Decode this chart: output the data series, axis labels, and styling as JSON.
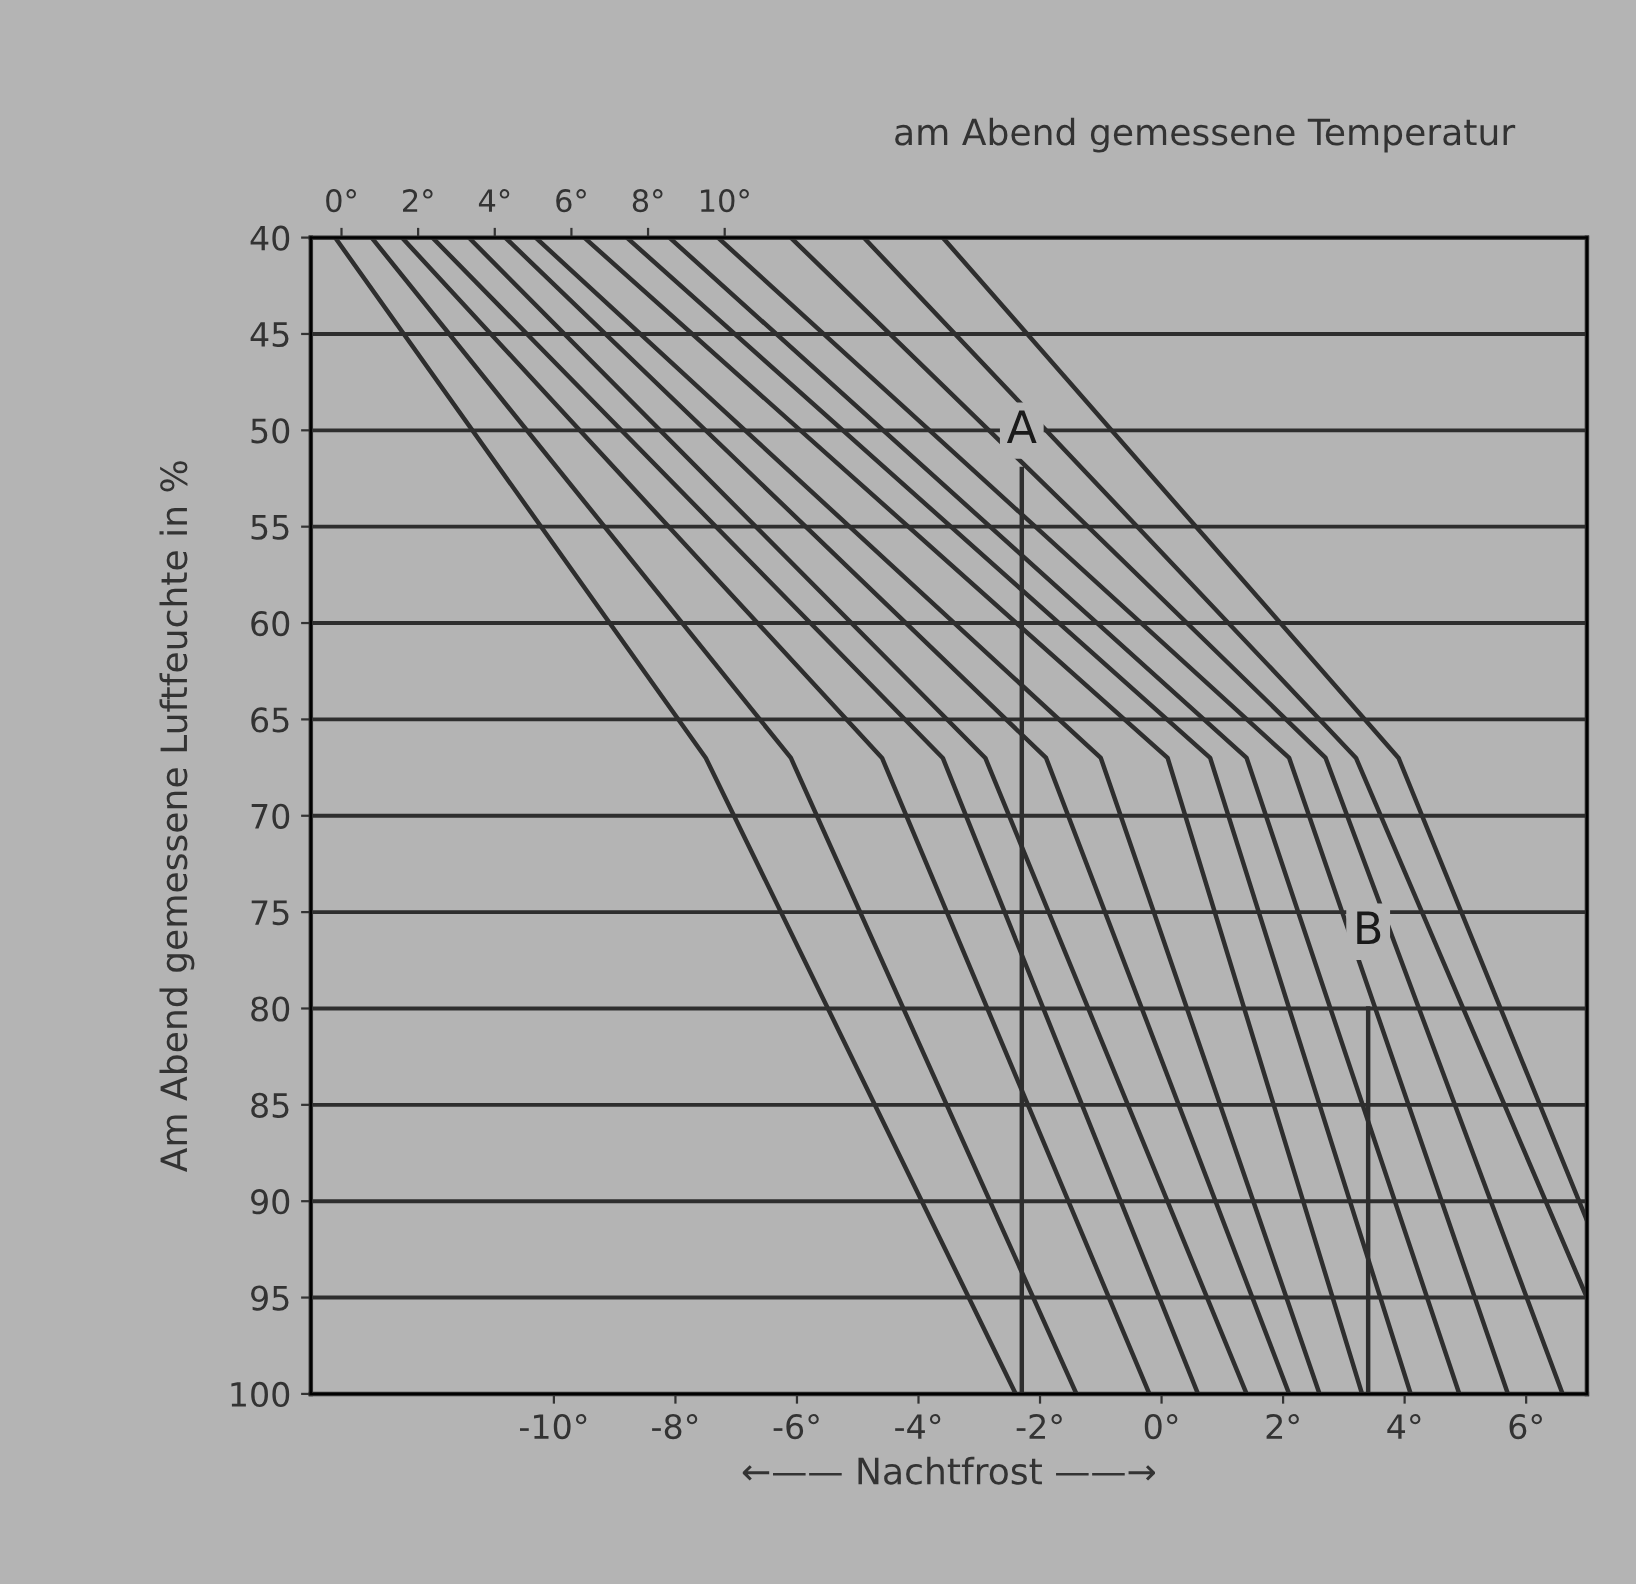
{
  "chart_data": {
    "type": "line",
    "x2label": "am Abend gemessene Temperatur",
    "ylabel": "Am Abend gemessene Luftfeuchte in %",
    "xlabel": "←—— Nachtfrost ——→",
    "xlim": [
      -14,
      7
    ],
    "ylim": [
      100,
      40
    ],
    "xticks": [
      {
        "value": -10,
        "label": "-10°"
      },
      {
        "value": -8,
        "label": "-8°"
      },
      {
        "value": -6,
        "label": "-6°"
      },
      {
        "value": -4,
        "label": "-4°"
      },
      {
        "value": -2,
        "label": "-2°"
      },
      {
        "value": 0,
        "label": "0°"
      },
      {
        "value": 2,
        "label": "2°"
      },
      {
        "value": 4,
        "label": "4°"
      },
      {
        "value": 6,
        "label": "6°"
      }
    ],
    "x2lim": [
      -0.8,
      32.5
    ],
    "x2ticks": [
      {
        "value": 0,
        "label": "0°"
      },
      {
        "value": 2,
        "label": "2°"
      },
      {
        "value": 4,
        "label": "4°"
      },
      {
        "value": 6,
        "label": "6°"
      },
      {
        "value": 8,
        "label": "8°"
      },
      {
        "value": 10,
        "label": "10°"
      }
    ],
    "yticks": [
      40,
      45,
      50,
      55,
      60,
      65,
      70,
      75,
      80,
      85,
      90,
      95,
      100
    ],
    "grid": "y",
    "line_style": "solid",
    "series": [
      {
        "color": "#2e2e2e",
        "x": [
          -13.6,
          -7.5,
          -2.4
        ],
        "values": [
          40,
          67,
          100
        ]
      },
      {
        "color": "#2e2e2e",
        "x": [
          -13.0,
          -6.1,
          -1.4
        ],
        "values": [
          40,
          67,
          100
        ]
      },
      {
        "color": "#2e2e2e",
        "x": [
          -12.5,
          -4.6,
          -0.2
        ],
        "values": [
          40,
          67,
          100
        ]
      },
      {
        "color": "#2e2e2e",
        "x": [
          -12.0,
          -3.6,
          0.6
        ],
        "values": [
          40,
          67,
          100
        ]
      },
      {
        "color": "#2e2e2e",
        "x": [
          -11.4,
          -2.9,
          1.4
        ],
        "values": [
          40,
          67,
          100
        ]
      },
      {
        "color": "#2e2e2e",
        "x": [
          -10.8,
          -1.9,
          2.1
        ],
        "values": [
          40,
          67,
          100
        ]
      },
      {
        "color": "#2e2e2e",
        "x": [
          -10.3,
          -1.0,
          2.6
        ],
        "values": [
          40,
          67,
          100
        ]
      },
      {
        "color": "#2e2e2e",
        "x": [
          -9.5,
          0.1,
          3.3
        ],
        "values": [
          40,
          67,
          100
        ]
      },
      {
        "color": "#2e2e2e",
        "x": [
          -8.8,
          0.8,
          4.1
        ],
        "values": [
          40,
          67,
          100
        ]
      },
      {
        "color": "#2e2e2e",
        "x": [
          -8.1,
          1.4,
          4.9
        ],
        "values": [
          40,
          67,
          100
        ]
      },
      {
        "color": "#2e2e2e",
        "x": [
          -7.3,
          2.1,
          5.7
        ],
        "values": [
          40,
          67,
          100
        ]
      },
      {
        "color": "#2e2e2e",
        "x": [
          -6.1,
          2.7,
          6.6
        ],
        "values": [
          40,
          67,
          100
        ]
      },
      {
        "color": "#2e2e2e",
        "x": [
          -4.9,
          3.2,
          7.0
        ],
        "values": [
          40,
          67,
          95
        ]
      },
      {
        "color": "#2e2e2e",
        "x": [
          -3.6,
          3.9,
          7.0
        ],
        "values": [
          40,
          67,
          91
        ]
      },
      {
        "color": "#2e2e2e",
        "x": [
          -2.3,
          -2.3
        ],
        "values": [
          52,
          100
        ]
      },
      {
        "color": "#2e2e2e",
        "x": [
          3.4,
          3.4
        ],
        "values": [
          80,
          100
        ]
      }
    ],
    "annotations": [
      {
        "text": "A",
        "x": -2.3,
        "y": 52
      },
      {
        "text": "B",
        "x": 3.4,
        "y": 78
      }
    ]
  }
}
